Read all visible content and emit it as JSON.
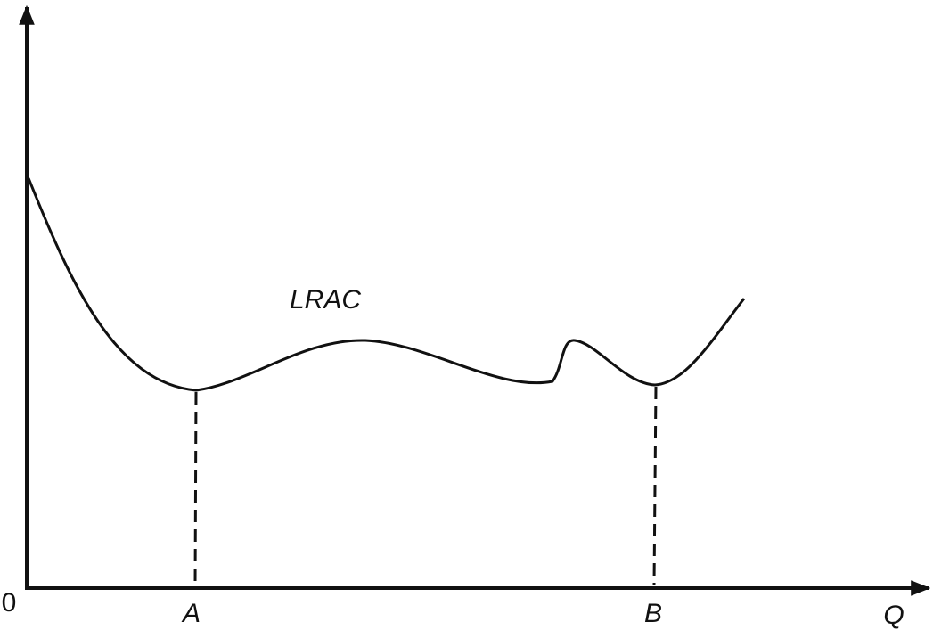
{
  "labels": {
    "origin": "0",
    "x_axis": "Q",
    "curve": "LRAC",
    "point_a": "A",
    "point_b": "B"
  }
}
